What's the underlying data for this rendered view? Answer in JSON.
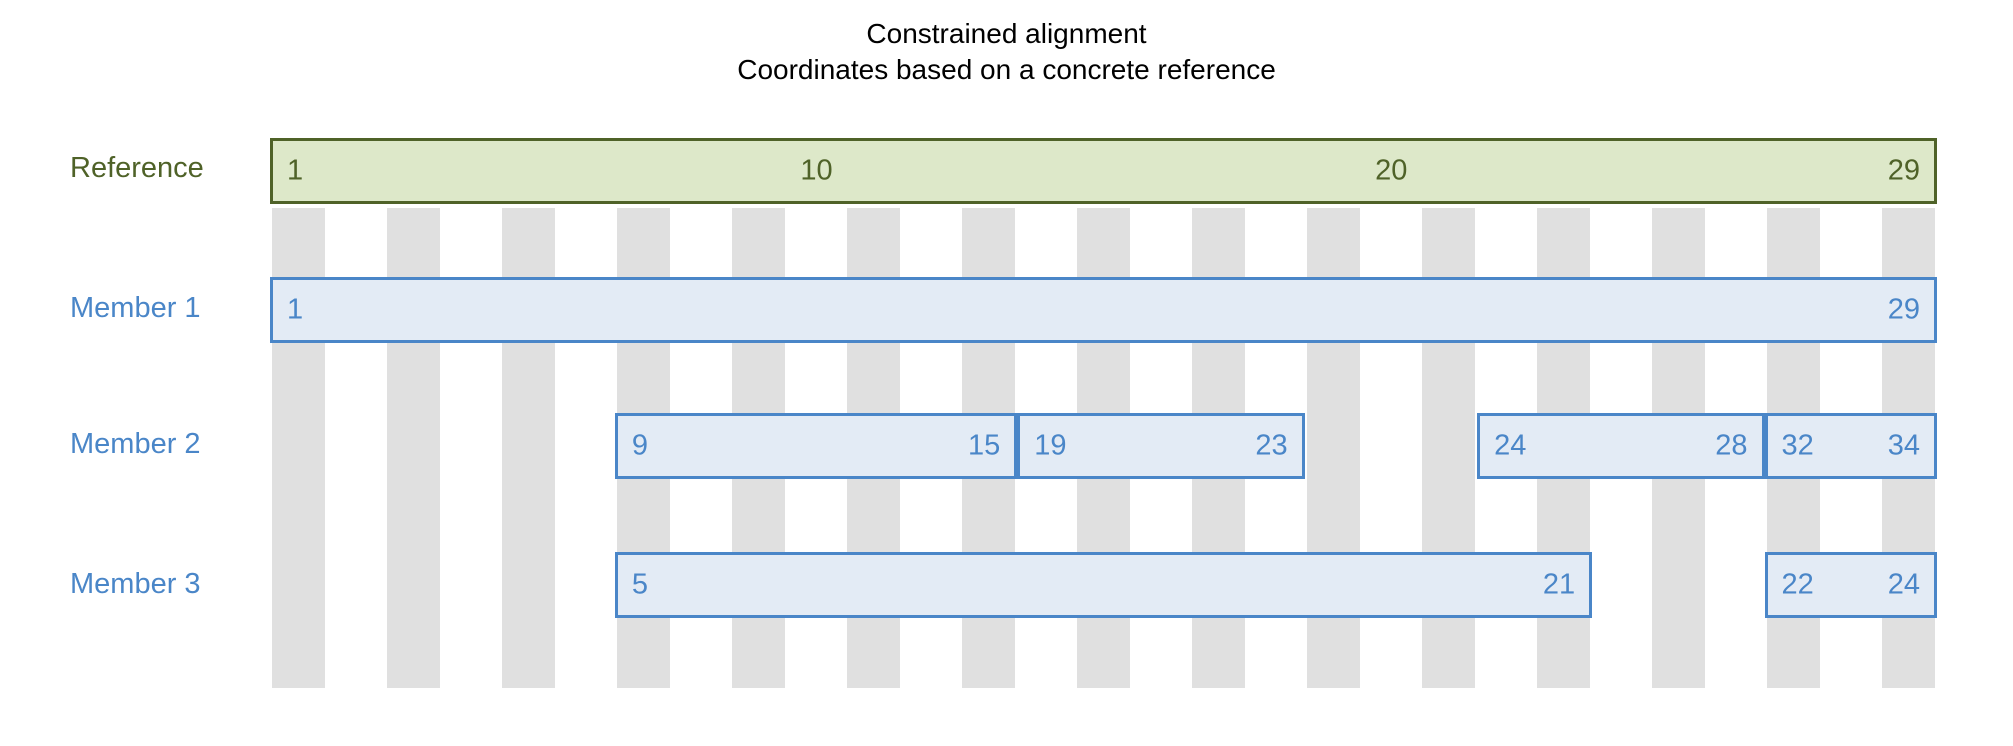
{
  "title": {
    "line1": "Constrained alignment",
    "line2": "Coordinates based on a concrete reference"
  },
  "colors": {
    "reference_fill": "#dde8c9",
    "reference_border": "#4f6228",
    "member_fill": "#e3ebf5",
    "member_border": "#4a86c8",
    "stripe": "#e0e0e0"
  },
  "rows": {
    "reference": {
      "label": "Reference",
      "segments": [
        {
          "start_col": 1,
          "end_col": 29,
          "left": "1",
          "right": "29"
        }
      ],
      "ticks": [
        {
          "col": 10,
          "label": "10"
        },
        {
          "col": 20,
          "label": "20"
        }
      ]
    },
    "member1": {
      "label": "Member 1",
      "segments": [
        {
          "start_col": 1,
          "end_col": 29,
          "left": "1",
          "right": "29"
        }
      ]
    },
    "member2": {
      "label": "Member 2",
      "segments": [
        {
          "start_col": 7,
          "end_col": 13,
          "left": "9",
          "right": "15"
        },
        {
          "start_col": 14,
          "end_col": 18,
          "left": "19",
          "right": "23"
        },
        {
          "start_col": 22,
          "end_col": 26,
          "left": "24",
          "right": "28"
        },
        {
          "start_col": 27,
          "end_col": 29,
          "left": "32",
          "right": "34"
        }
      ]
    },
    "member3": {
      "label": "Member 3",
      "segments": [
        {
          "start_col": 7,
          "end_col": 23,
          "left": "5",
          "right": "21"
        },
        {
          "start_col": 27,
          "end_col": 29,
          "left": "22",
          "right": "24"
        }
      ]
    }
  }
}
